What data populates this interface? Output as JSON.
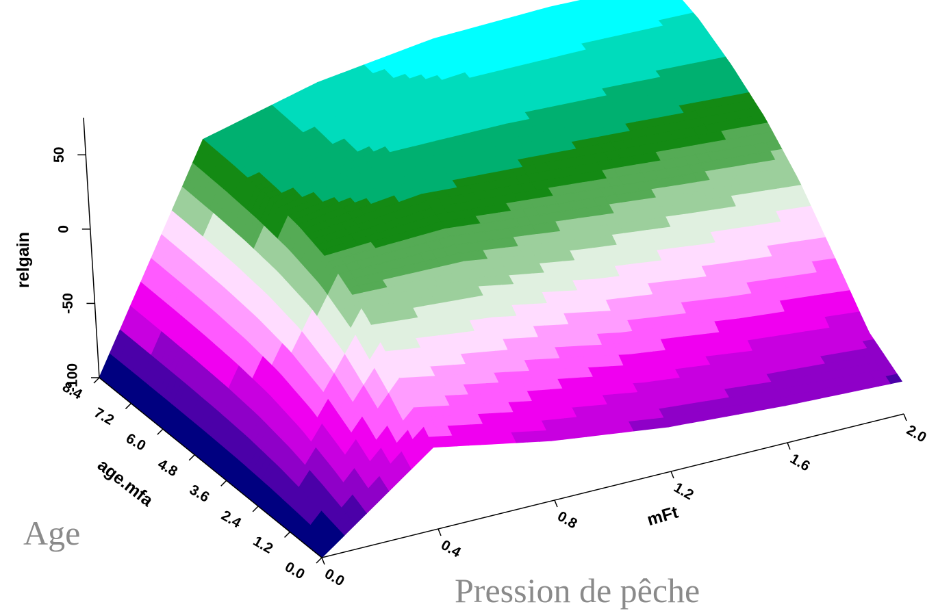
{
  "chart_data": {
    "type": "surface",
    "title": "",
    "zlabel": "relgain",
    "xlabel": "mFt",
    "ylabel": "age.mfa",
    "annotations": {
      "x_caption": "Pression de pêche",
      "y_caption": "Age"
    },
    "z_ticks": [
      "50",
      "0",
      "-50",
      "-100"
    ],
    "x_ticks": [
      "0.0",
      "0.4",
      "0.8",
      "1.2",
      "1.6",
      "2.0"
    ],
    "y_ticks": [
      "0.0",
      "1.2",
      "2.4",
      "3.6",
      "4.8",
      "6.0",
      "7.2",
      "8.4"
    ],
    "zlim": [
      -100,
      75
    ],
    "xlim": [
      0,
      2.0
    ],
    "ylim": [
      0,
      8.4
    ],
    "contour_colors": [
      "#000080",
      "#4b00a8",
      "#8f00c8",
      "#c800e0",
      "#f000f0",
      "#ff5aff",
      "#ff9cff",
      "#ffdcff",
      "#e0f0e0",
      "#9ccf9c",
      "#55ab55",
      "#148a14",
      "#00b070",
      "#00dcbc",
      "#00ffff"
    ],
    "x_grid": [
      0,
      0.4,
      0.8,
      1.2,
      1.6,
      2.0
    ],
    "y_grid": [
      0,
      1.2,
      2.4,
      3.6,
      4.8,
      6.0,
      7.2,
      8.4
    ],
    "relgain": [
      [
        -100,
        -100,
        -100,
        -100,
        -100,
        -100,
        -100,
        -100
      ],
      [
        -45,
        -15,
        10,
        26,
        34,
        38,
        40,
        41
      ],
      [
        -60,
        -30,
        5,
        28,
        44,
        54,
        58,
        60
      ],
      [
        -70,
        -45,
        -10,
        20,
        40,
        55,
        64,
        70
      ],
      [
        -75,
        -55,
        -20,
        12,
        35,
        52,
        64,
        72
      ],
      [
        -78,
        -62,
        -28,
        5,
        30,
        48,
        62,
        70
      ]
    ]
  }
}
